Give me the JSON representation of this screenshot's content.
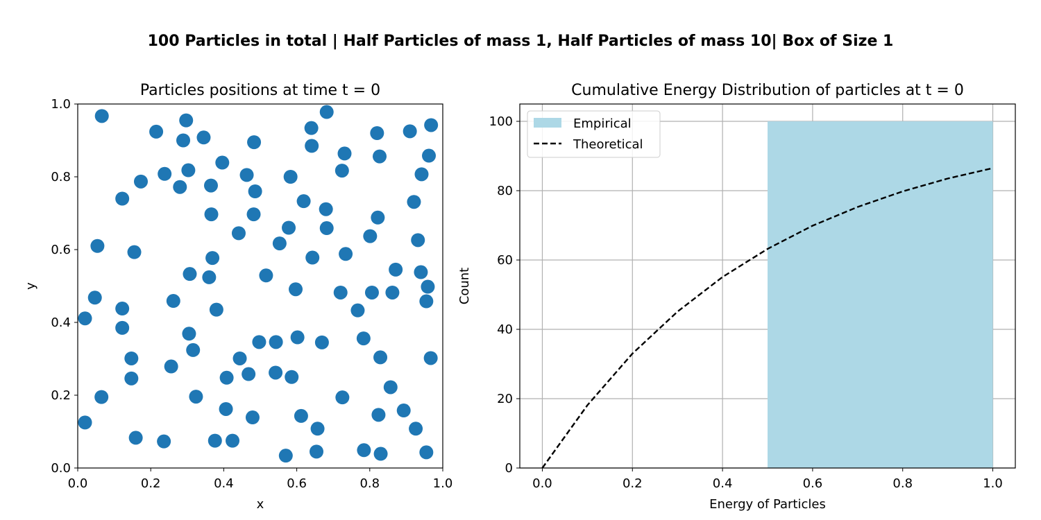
{
  "suptitle": "100 Particles in total | Half Particles of mass 1, Half Particles of mass 10| Box of Size 1",
  "chart_data": [
    {
      "type": "scatter",
      "title": "Particles positions at time t = 0",
      "xlabel": "x",
      "ylabel": "y",
      "xlim": [
        0.0,
        1.0
      ],
      "ylim": [
        0.0,
        1.0
      ],
      "xticks": [
        "0.0",
        "0.2",
        "0.4",
        "0.6",
        "0.8",
        "1.0"
      ],
      "yticks": [
        "0.0",
        "0.2",
        "0.4",
        "0.6",
        "0.8",
        "1.0"
      ],
      "grid": false,
      "color": "#1f77b4",
      "points": [
        [
          0.066,
          0.967
        ],
        [
          0.215,
          0.924
        ],
        [
          0.297,
          0.955
        ],
        [
          0.289,
          0.9
        ],
        [
          0.345,
          0.908
        ],
        [
          0.483,
          0.895
        ],
        [
          0.64,
          0.934
        ],
        [
          0.682,
          0.978
        ],
        [
          0.641,
          0.885
        ],
        [
          0.82,
          0.92
        ],
        [
          0.91,
          0.925
        ],
        [
          0.968,
          0.942
        ],
        [
          0.238,
          0.808
        ],
        [
          0.303,
          0.818
        ],
        [
          0.396,
          0.839
        ],
        [
          0.463,
          0.805
        ],
        [
          0.583,
          0.8
        ],
        [
          0.731,
          0.864
        ],
        [
          0.827,
          0.856
        ],
        [
          0.962,
          0.858
        ],
        [
          0.724,
          0.817
        ],
        [
          0.942,
          0.807
        ],
        [
          0.122,
          0.74
        ],
        [
          0.173,
          0.787
        ],
        [
          0.28,
          0.772
        ],
        [
          0.365,
          0.776
        ],
        [
          0.486,
          0.76
        ],
        [
          0.619,
          0.733
        ],
        [
          0.68,
          0.711
        ],
        [
          0.921,
          0.731
        ],
        [
          0.366,
          0.697
        ],
        [
          0.482,
          0.697
        ],
        [
          0.822,
          0.688
        ],
        [
          0.054,
          0.61
        ],
        [
          0.155,
          0.593
        ],
        [
          0.441,
          0.645
        ],
        [
          0.553,
          0.617
        ],
        [
          0.578,
          0.66
        ],
        [
          0.682,
          0.659
        ],
        [
          0.801,
          0.637
        ],
        [
          0.932,
          0.626
        ],
        [
          0.369,
          0.577
        ],
        [
          0.643,
          0.578
        ],
        [
          0.734,
          0.588
        ],
        [
          0.307,
          0.533
        ],
        [
          0.36,
          0.524
        ],
        [
          0.516,
          0.529
        ],
        [
          0.871,
          0.545
        ],
        [
          0.94,
          0.538
        ],
        [
          0.959,
          0.498
        ],
        [
          0.597,
          0.491
        ],
        [
          0.72,
          0.482
        ],
        [
          0.806,
          0.482
        ],
        [
          0.862,
          0.482
        ],
        [
          0.047,
          0.468
        ],
        [
          0.122,
          0.438
        ],
        [
          0.262,
          0.459
        ],
        [
          0.38,
          0.435
        ],
        [
          0.767,
          0.433
        ],
        [
          0.955,
          0.458
        ],
        [
          0.02,
          0.411
        ],
        [
          0.122,
          0.385
        ],
        [
          0.305,
          0.369
        ],
        [
          0.316,
          0.324
        ],
        [
          0.497,
          0.346
        ],
        [
          0.543,
          0.346
        ],
        [
          0.602,
          0.359
        ],
        [
          0.669,
          0.345
        ],
        [
          0.783,
          0.356
        ],
        [
          0.147,
          0.301
        ],
        [
          0.256,
          0.279
        ],
        [
          0.444,
          0.301
        ],
        [
          0.829,
          0.304
        ],
        [
          0.967,
          0.302
        ],
        [
          0.147,
          0.246
        ],
        [
          0.408,
          0.248
        ],
        [
          0.468,
          0.258
        ],
        [
          0.542,
          0.262
        ],
        [
          0.586,
          0.25
        ],
        [
          0.857,
          0.222
        ],
        [
          0.065,
          0.195
        ],
        [
          0.324,
          0.196
        ],
        [
          0.406,
          0.162
        ],
        [
          0.479,
          0.139
        ],
        [
          0.612,
          0.143
        ],
        [
          0.725,
          0.194
        ],
        [
          0.824,
          0.146
        ],
        [
          0.893,
          0.158
        ],
        [
          0.926,
          0.108
        ],
        [
          0.657,
          0.108
        ],
        [
          0.02,
          0.125
        ],
        [
          0.159,
          0.083
        ],
        [
          0.236,
          0.073
        ],
        [
          0.376,
          0.075
        ],
        [
          0.424,
          0.075
        ],
        [
          0.57,
          0.034
        ],
        [
          0.654,
          0.045
        ],
        [
          0.784,
          0.049
        ],
        [
          0.83,
          0.039
        ],
        [
          0.955,
          0.043
        ]
      ]
    },
    {
      "type": "bar",
      "title": "Cumulative Energy Distribution of particles at t = 0",
      "xlabel": "Energy of Particles",
      "ylabel": "Count",
      "xlim": [
        -0.05,
        1.05
      ],
      "ylim": [
        0,
        105
      ],
      "xticks": [
        "0.0",
        "0.2",
        "0.4",
        "0.6",
        "0.8",
        "1.0"
      ],
      "yticks": [
        "0",
        "20",
        "40",
        "60",
        "80",
        "100"
      ],
      "grid": true,
      "legend_position": "top-left",
      "series": [
        {
          "name": "Empirical",
          "kind": "bar",
          "color": "#add8e6",
          "bins": [
            [
              0.5,
              1.0,
              100
            ]
          ]
        },
        {
          "name": "Theoretical",
          "kind": "line",
          "style": "dashed",
          "color": "#000000",
          "x": [
            0.0,
            0.1,
            0.2,
            0.3,
            0.4,
            0.5,
            0.6,
            0.7,
            0.8,
            0.9,
            1.0
          ],
          "y": [
            0,
            18.1,
            33.0,
            45.1,
            55.1,
            63.2,
            69.9,
            75.3,
            79.8,
            83.5,
            86.5
          ]
        }
      ]
    }
  ]
}
